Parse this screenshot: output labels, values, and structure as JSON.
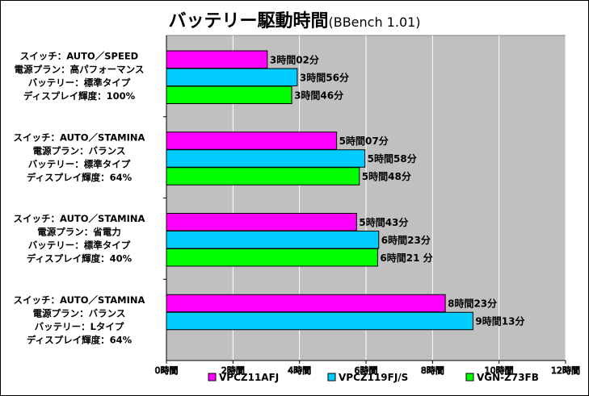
{
  "chart_data": {
    "type": "bar",
    "orientation": "horizontal",
    "title": "バッテリー駆動時間",
    "subtitle": "(BBench 1.01)",
    "xlim": [
      0,
      12
    ],
    "x_ticks": [
      0,
      2,
      4,
      6,
      8,
      10,
      12
    ],
    "x_tick_labels": [
      "0時間",
      "2時間",
      "4時間",
      "6時間",
      "8時間",
      "10時間",
      "12時間"
    ],
    "grid": true,
    "legend_position": "bottom",
    "colors": {
      "VPCZ11AFJ": "#ff00ff",
      "VPCZ119FJ/S": "#00ccff",
      "VGN-Z73FB": "#00ff00",
      "plot_bg": "#c0c0c0"
    },
    "series": [
      {
        "name": "VPCZ11AFJ",
        "legend": "VPCZ11AFJ",
        "color": "#ff00ff"
      },
      {
        "name": "VPCZ119FJ/S",
        "legend": "VPCZ119FJ/S",
        "color": "#00ccff"
      },
      {
        "name": "VGN-Z73FB",
        "legend": "VGN-Z73FB",
        "color": "#00ff00"
      }
    ],
    "categories": [
      {
        "lines": [
          "スイッチ：AUTO／SPEED",
          "電源プラン：高パフォーマンス",
          "バッテリー：標準タイプ",
          "ディスプレイ輝度：100%"
        ],
        "bars": [
          {
            "series": "VPCZ11AFJ",
            "value": 3.033,
            "label": "3時間02分"
          },
          {
            "series": "VPCZ119FJ/S",
            "value": 3.933,
            "label": "3時間56分"
          },
          {
            "series": "VGN-Z73FB",
            "value": 3.767,
            "label": "3時間46分"
          }
        ]
      },
      {
        "lines": [
          "スイッチ：AUTO／STAMINA",
          "電源プラン：バランス",
          "バッテリー：標準タイプ",
          "ディスプレイ輝度：64%"
        ],
        "bars": [
          {
            "series": "VPCZ11AFJ",
            "value": 5.117,
            "label": "5時間07分"
          },
          {
            "series": "VPCZ119FJ/S",
            "value": 5.967,
            "label": "5時間58分"
          },
          {
            "series": "VGN-Z73FB",
            "value": 5.8,
            "label": "5時間48分"
          }
        ]
      },
      {
        "lines": [
          "スイッチ：AUTO／STAMINA",
          "電源プラン：省電力",
          "バッテリー：標準タイプ",
          "ディスプレイ輝度：40%"
        ],
        "bars": [
          {
            "series": "VPCZ11AFJ",
            "value": 5.717,
            "label": "5時間43分"
          },
          {
            "series": "VPCZ119FJ/S",
            "value": 6.383,
            "label": "6時間23分"
          },
          {
            "series": "VGN-Z73FB",
            "value": 6.35,
            "label": "6時間21 分"
          }
        ]
      },
      {
        "lines": [
          "スイッチ：AUTO／STAMINA",
          "電源プラン：バランス",
          "バッテリー：Lタイプ",
          "ディスプレイ輝度：64%"
        ],
        "bars": [
          {
            "series": "VPCZ11AFJ",
            "value": 8.383,
            "label": "8時間23分"
          },
          {
            "series": "VPCZ119FJ/S",
            "value": 9.217,
            "label": "9時間13分"
          }
        ]
      }
    ]
  }
}
